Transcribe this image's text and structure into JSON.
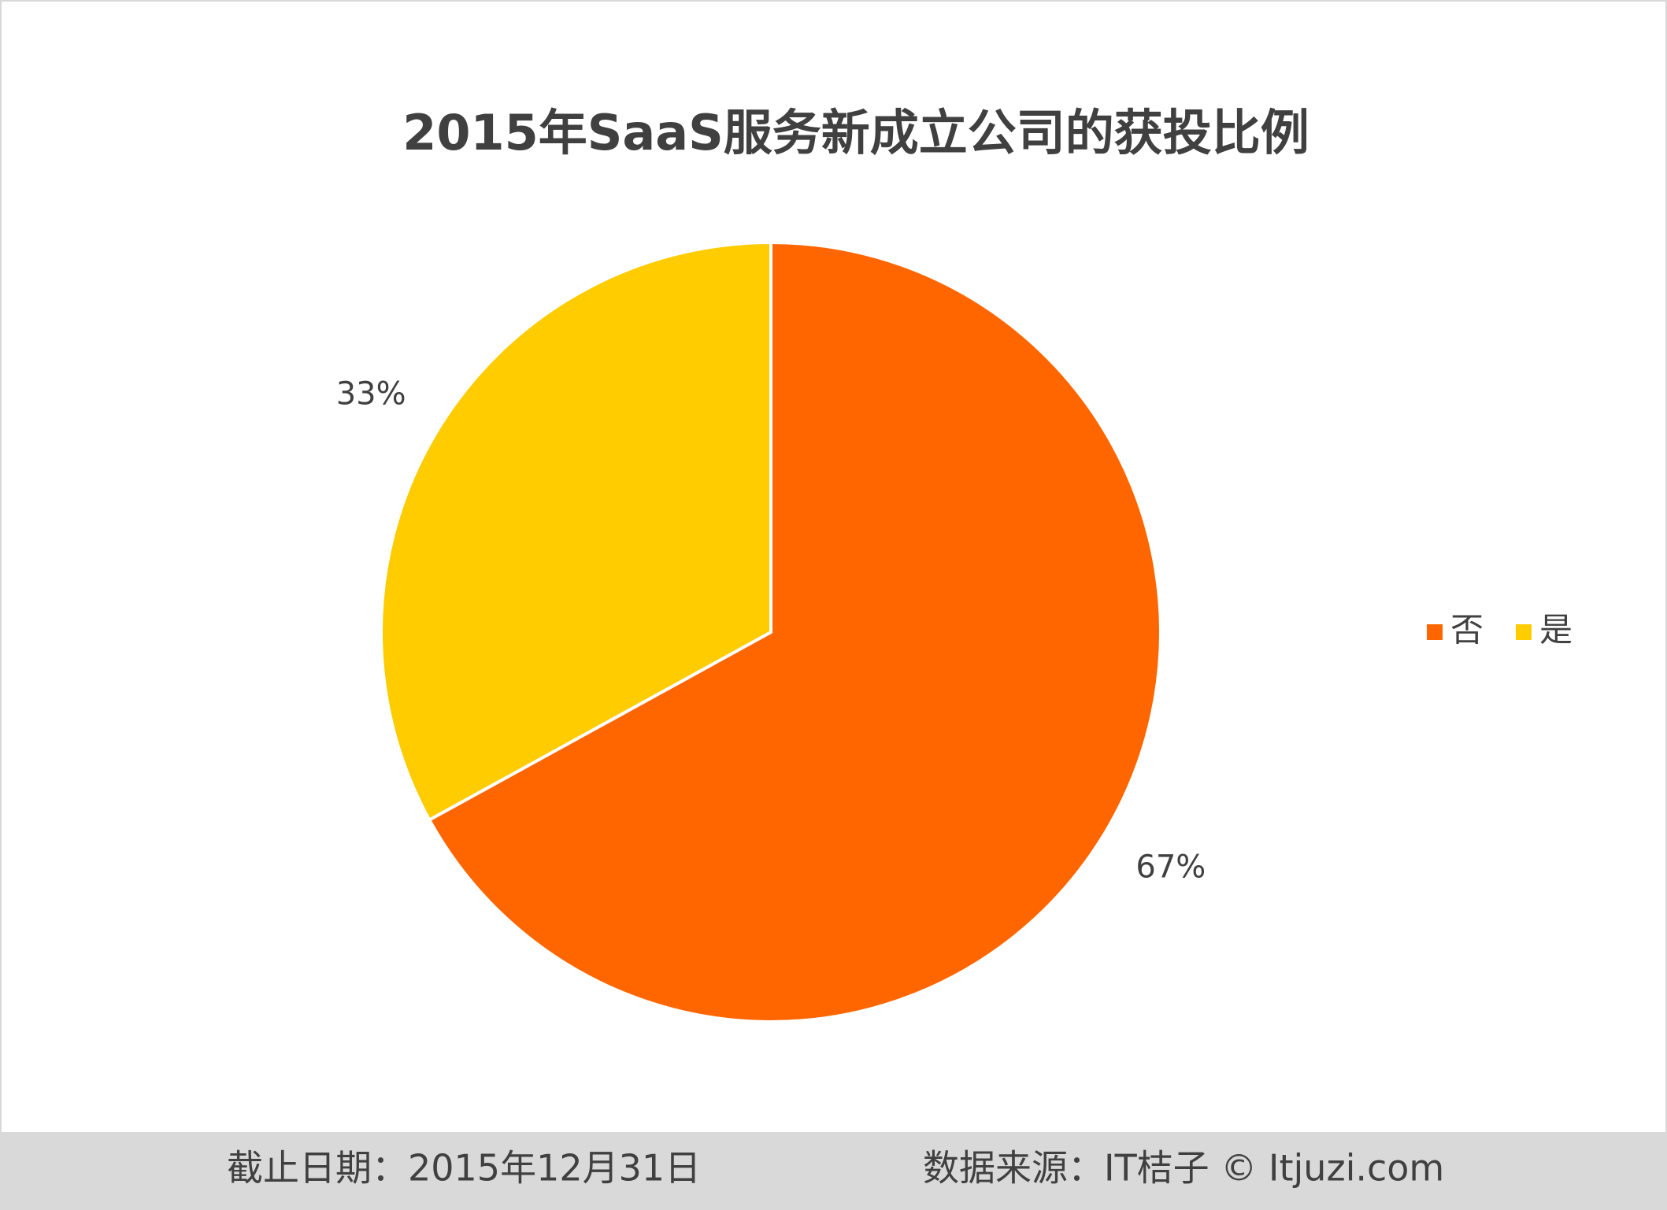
{
  "chart_data": {
    "type": "pie",
    "title": "2015年SaaS服务新成立公司的获投比例",
    "categories": [
      "否",
      "是"
    ],
    "values": [
      67,
      33
    ],
    "value_labels": [
      "67%",
      "33%"
    ],
    "colors": [
      "#ff6600",
      "#ffcc00"
    ],
    "legend": "right"
  },
  "footer": {
    "date": "截止日期：2015年12月31日",
    "source": "数据来源：IT桔子 © Itjuzi.com"
  }
}
